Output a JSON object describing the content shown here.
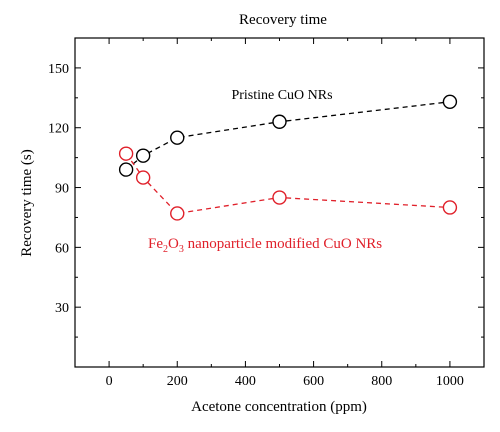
{
  "chart_data": {
    "type": "line",
    "title": "Recovery time",
    "xlabel": "Acetone concentration (ppm)",
    "ylabel": "Recovery time (s)",
    "xlim": [
      -100,
      1100
    ],
    "ylim": [
      0,
      165
    ],
    "xticks": [
      0,
      200,
      400,
      600,
      800,
      1000
    ],
    "yticks": [
      30,
      60,
      90,
      120,
      150
    ],
    "grid": false,
    "series": [
      {
        "name": "Pristine CuO NRs",
        "color": "#000000",
        "x": [
          50,
          100,
          200,
          500,
          1000
        ],
        "y": [
          99,
          106,
          115,
          123,
          133
        ]
      },
      {
        "name": "Fe2O3 nanoparticle modified CuO NRs",
        "color": "#e0202a",
        "x": [
          50,
          100,
          200,
          500,
          1000
        ],
        "y": [
          107,
          95,
          77,
          85,
          80
        ]
      }
    ],
    "annotations": {
      "pristine": "Pristine CuO NRs",
      "fe_part1": "Fe",
      "fe_sub1": "2",
      "fe_part2": "O",
      "fe_sub2": "3",
      "fe_part3": " nanoparticle modified CuO NRs"
    }
  }
}
